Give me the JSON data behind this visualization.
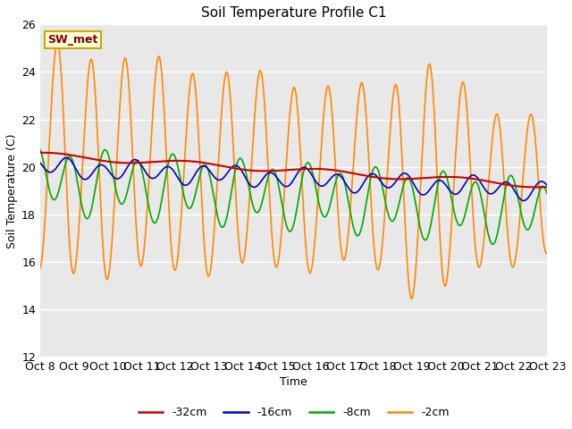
{
  "title": "Soil Temperature Profile C1",
  "xlabel": "Time",
  "ylabel": "Soil Temperature (C)",
  "ylim": [
    12,
    26
  ],
  "background_color": "#ffffff",
  "plot_bg_color": "#e8e8e8",
  "annotation_text": "SW_met",
  "annotation_color": "#8B0000",
  "annotation_bg": "#ffffdd",
  "annotation_border": "#ccaa00",
  "x_tick_labels": [
    "Oct 8",
    "Oct 9",
    "Oct 10",
    "Oct 11",
    "Oct 12",
    "Oct 13",
    "Oct 14",
    "Oct 15",
    "Oct 16",
    "Oct 17",
    "Oct 18",
    "Oct 19",
    "Oct 20",
    "Oct 21",
    "Oct 22",
    "Oct 23"
  ],
  "grid_color": "#ffffff",
  "series_32_color": "#cc0000",
  "series_16_color": "#0000cc",
  "series_8_color": "#00aa00",
  "series_2_color": "#ff8800",
  "linewidth": 1.2,
  "legend_entries": [
    {
      "label": "-32cm",
      "color": "#cc0000"
    },
    {
      "label": "-16cm",
      "color": "#0000cc"
    },
    {
      "label": "-8cm",
      "color": "#00aa00"
    },
    {
      "label": "-2cm",
      "color": "#ff8800"
    }
  ]
}
